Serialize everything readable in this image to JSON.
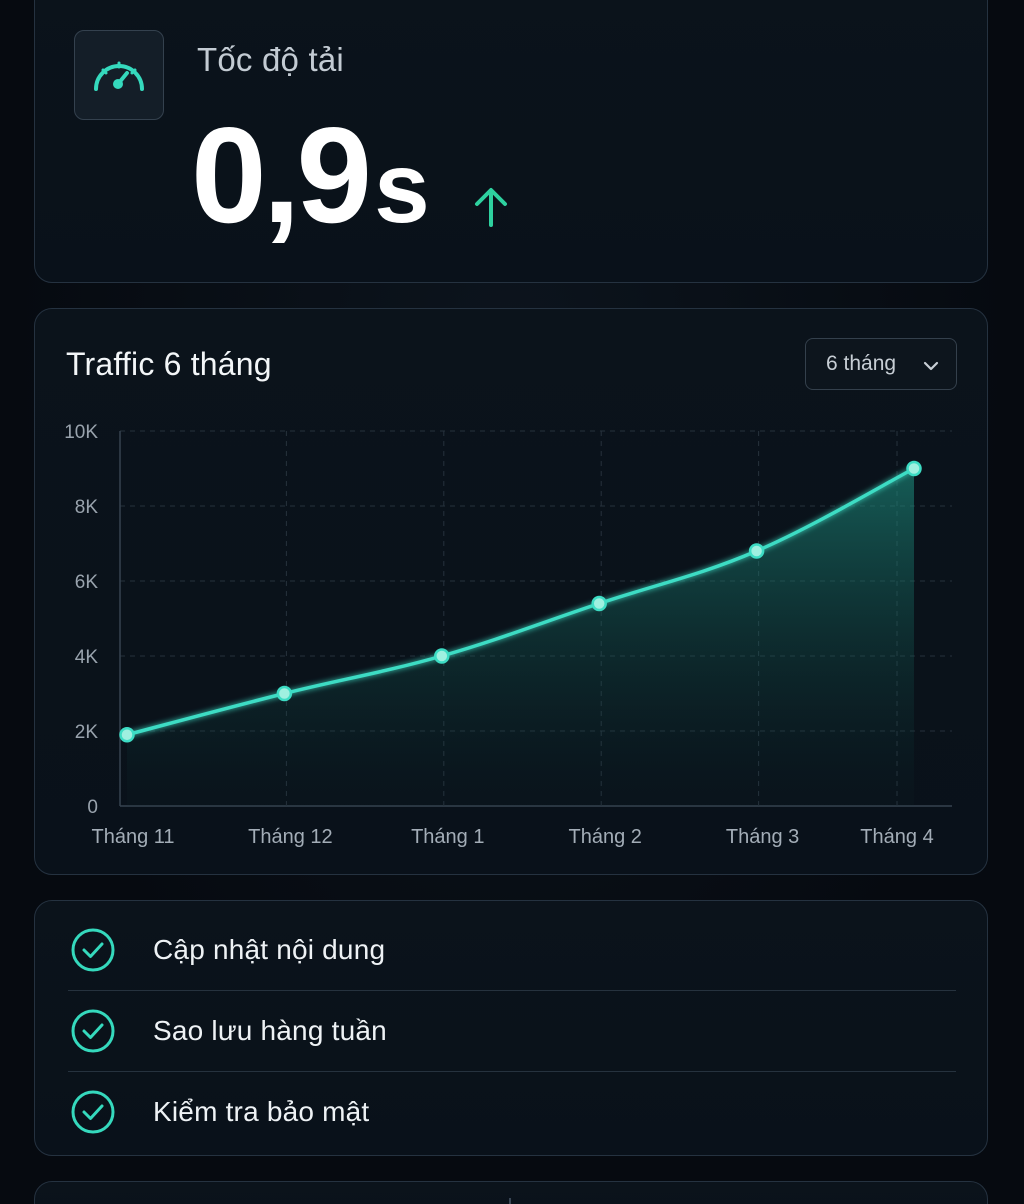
{
  "speed": {
    "label": "Tốc độ tải",
    "value": "0,9",
    "unit": "s",
    "icon": "speedometer-icon",
    "trend_icon": "arrow-up-icon",
    "accent": "#2fd6b5"
  },
  "traffic": {
    "title": "Traffic 6 tháng",
    "period_selected": "6 tháng"
  },
  "chart_data": {
    "type": "area",
    "categories": [
      "Tháng 11",
      "Tháng 12",
      "Tháng 1",
      "Tháng 2",
      "Tháng 3",
      "Tháng 4"
    ],
    "series": [
      {
        "values": [
          1900,
          3000,
          4000,
          5400,
          6800,
          9000
        ]
      }
    ],
    "y_ticks": [
      "0",
      "2K",
      "4K",
      "6K",
      "8K",
      "10K"
    ],
    "ylim": [
      0,
      10000
    ],
    "grid": true,
    "line_color": "#3ddcc4",
    "fill_color": "#1f8f80"
  },
  "checklist": {
    "items": [
      {
        "label": "Cập nhật nội dung",
        "icon": "check-circle-icon"
      },
      {
        "label": "Sao lưu hàng tuần",
        "icon": "check-circle-icon"
      },
      {
        "label": "Kiểm tra bảo mật",
        "icon": "check-circle-icon"
      }
    ]
  }
}
